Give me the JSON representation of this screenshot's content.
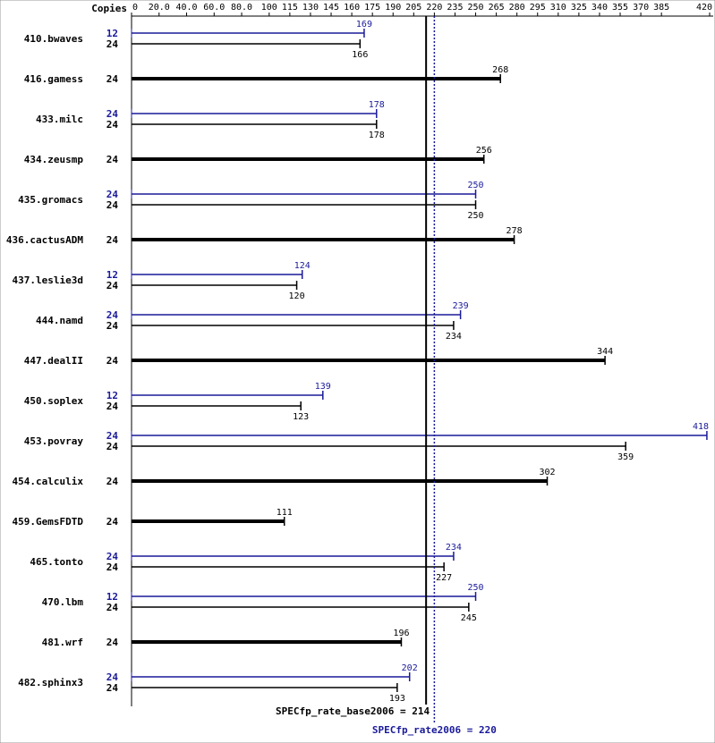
{
  "chart_data": {
    "type": "bar",
    "orientation": "horizontal",
    "copies_label": "Copies",
    "categories": [
      "410.bwaves",
      "416.gamess",
      "433.milc",
      "434.zeusmp",
      "435.gromacs",
      "436.cactusADM",
      "437.leslie3d",
      "444.namd",
      "447.dealII",
      "450.soplex",
      "453.povray",
      "454.calculix",
      "459.GemsFDTD",
      "465.tonto",
      "470.lbm",
      "481.wrf",
      "482.sphinx3"
    ],
    "series": [
      {
        "color": "#1a1a9a",
        "copies": [
          12,
          null,
          24,
          null,
          24,
          null,
          12,
          24,
          null,
          12,
          24,
          null,
          null,
          24,
          12,
          null,
          24
        ],
        "values": [
          169,
          null,
          178,
          null,
          250,
          null,
          124,
          239,
          null,
          139,
          418,
          null,
          null,
          234,
          250,
          null,
          202
        ]
      },
      {
        "color": "#000000",
        "copies": [
          24,
          24,
          24,
          24,
          24,
          24,
          24,
          24,
          24,
          24,
          24,
          24,
          24,
          24,
          24,
          24,
          24
        ],
        "values": [
          166,
          268,
          178,
          256,
          250,
          278,
          120,
          234,
          344,
          123,
          359,
          302,
          111,
          227,
          245,
          196,
          193
        ]
      }
    ],
    "xlim": [
      0,
      420
    ],
    "xticks": [
      0,
      {
        "value": 20,
        "label": "20.0"
      },
      {
        "value": 40,
        "label": "40.0"
      },
      {
        "value": 60,
        "label": "60.0"
      },
      {
        "value": 80,
        "label": "80.0"
      },
      100,
      115,
      130,
      145,
      160,
      175,
      190,
      205,
      220,
      235,
      250,
      265,
      280,
      295,
      310,
      325,
      340,
      355,
      370,
      385,
      420
    ],
    "base_metric": {
      "label": "SPECfp_rate_base2006 = 214",
      "value": 214,
      "color": "#000000"
    },
    "peak_metric": {
      "label": "SPECfp_rate2006 = 220",
      "value": 220,
      "color": "#1a1a9a"
    }
  }
}
